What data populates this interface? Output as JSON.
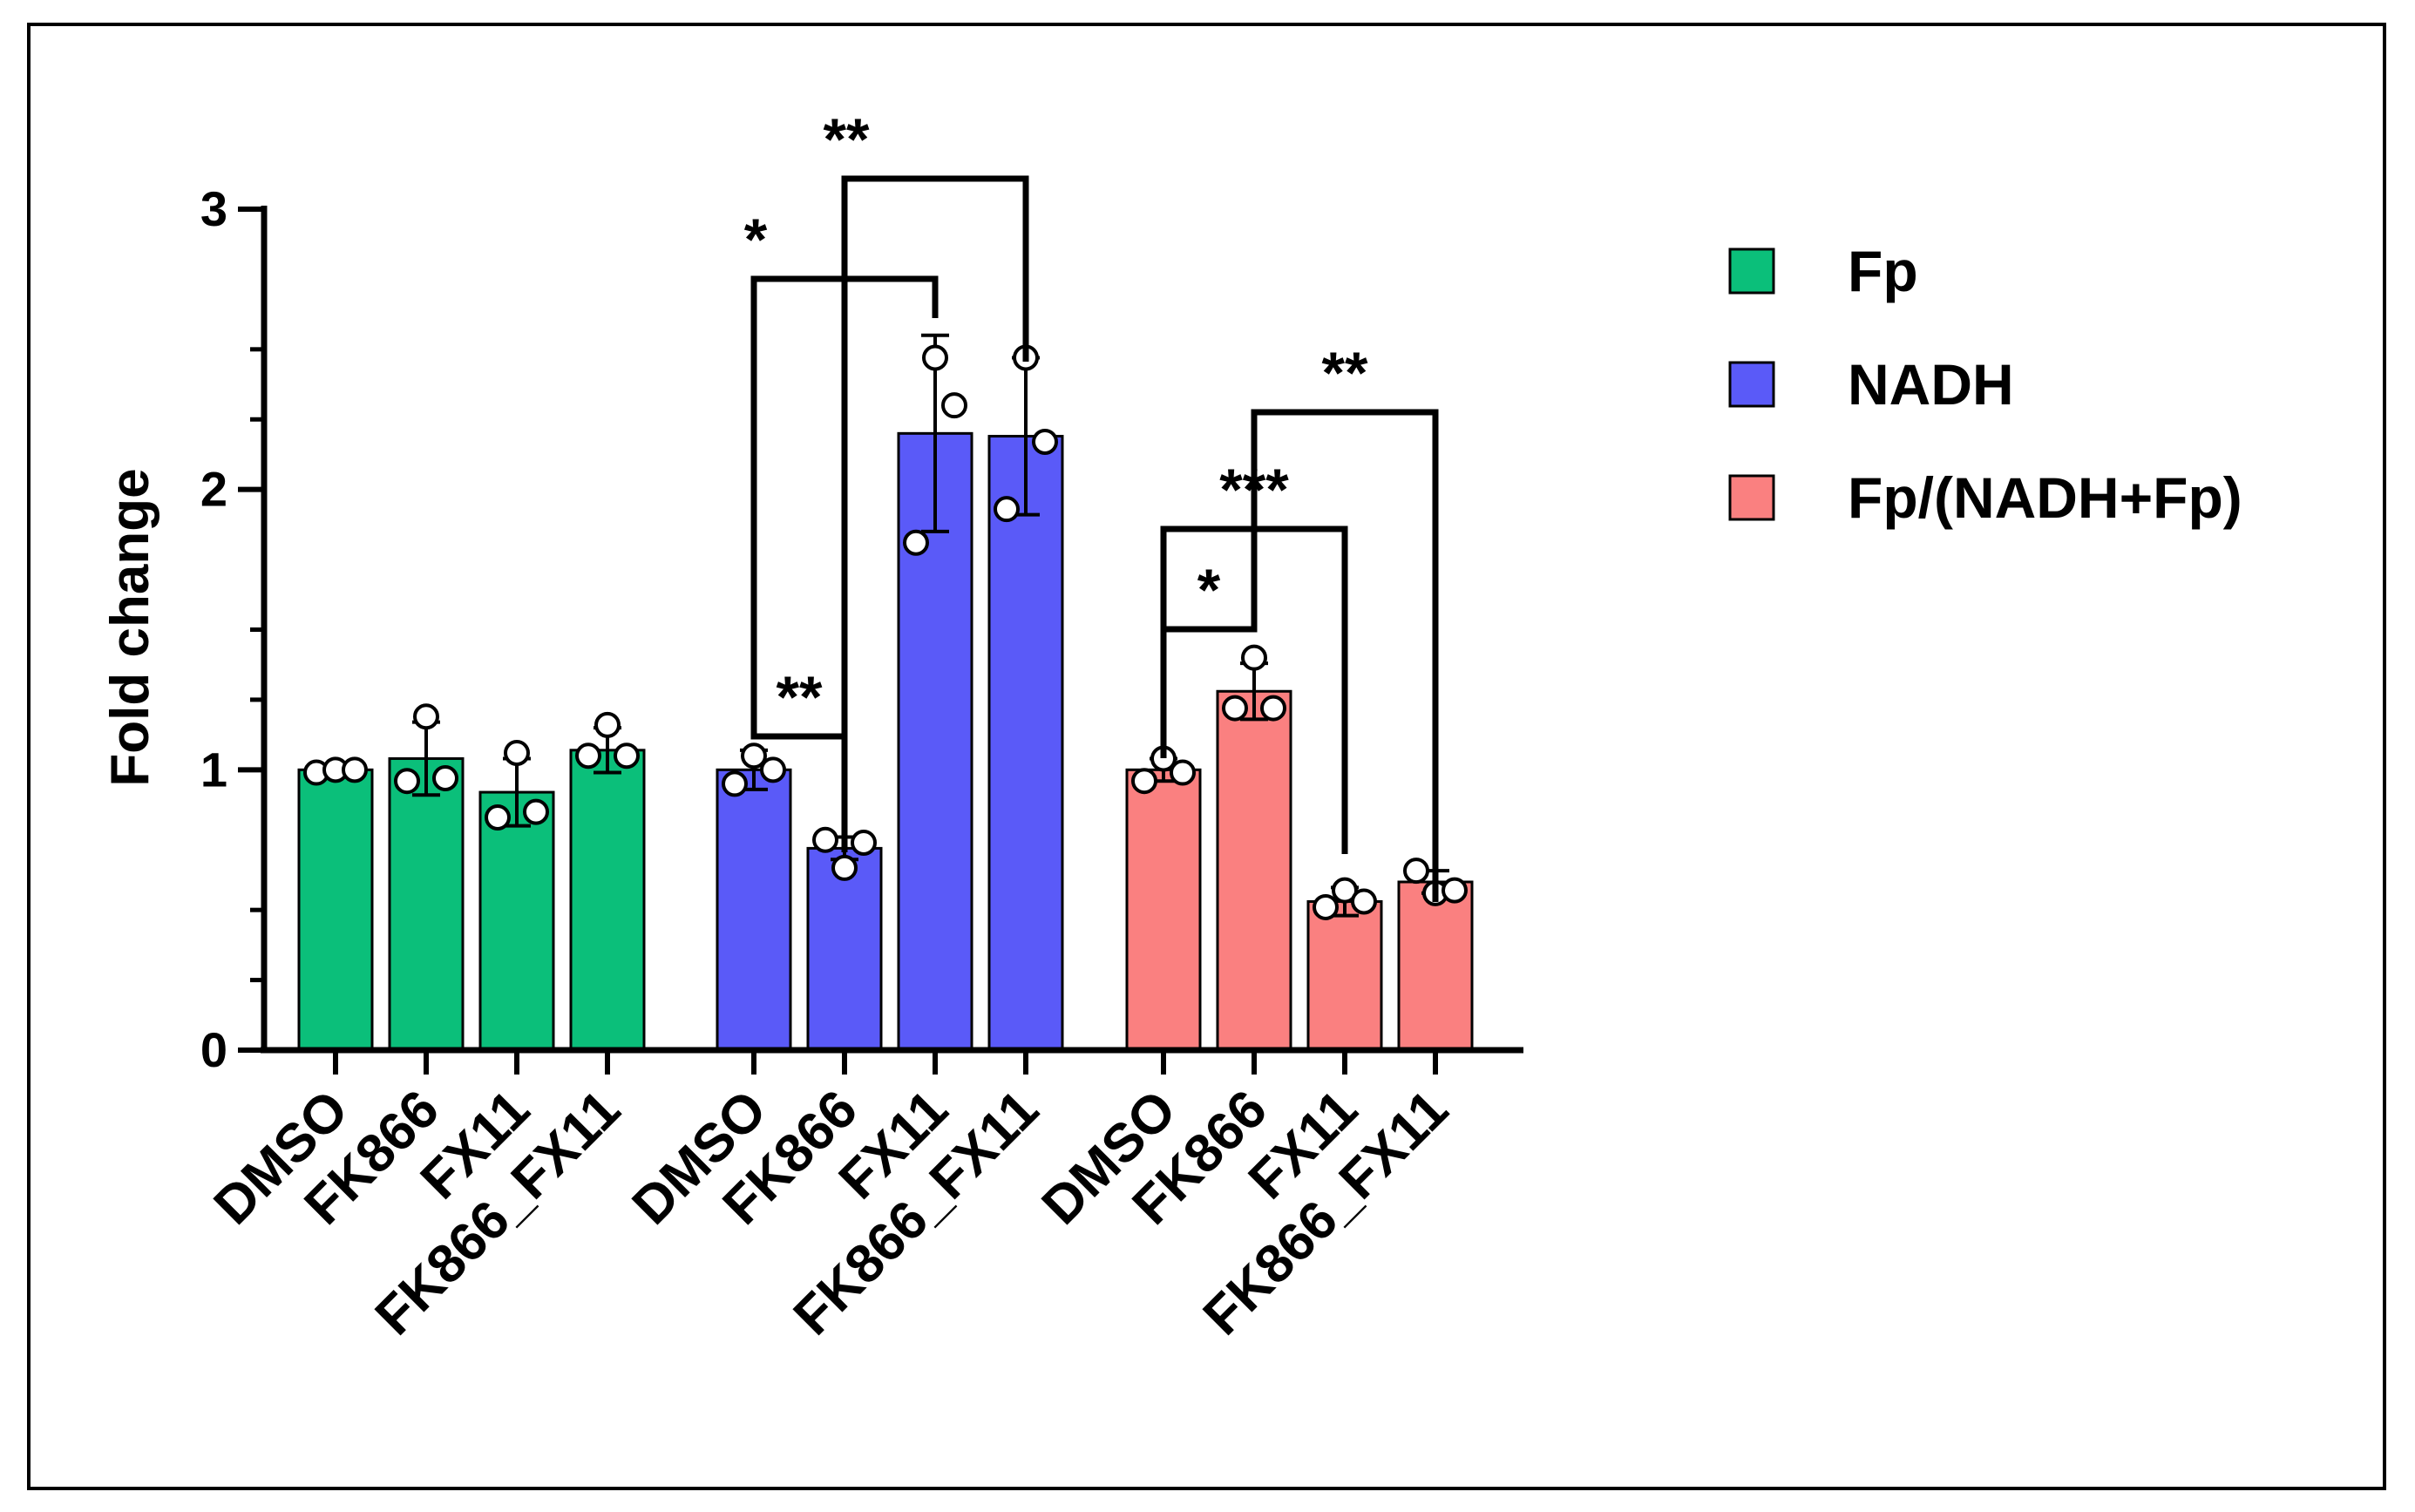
{
  "chart_data": {
    "type": "bar",
    "title": "",
    "xlabel": "",
    "ylabel": "Fold change",
    "ylim": [
      0,
      3
    ],
    "yticks": [
      "0",
      "1",
      "2",
      "3"
    ],
    "grid": false,
    "legend_position": "right",
    "series": [
      {
        "name": "Fp",
        "color": "#0BBF7A",
        "categories": [
          "DMSO",
          "FK866",
          "FX11",
          "FK866_FX11"
        ],
        "values": [
          1.0,
          1.04,
          0.92,
          1.07
        ],
        "errors": [
          0.01,
          0.13,
          0.12,
          0.08
        ],
        "points": [
          [
            0.99,
            1.0,
            1.0
          ],
          [
            0.96,
            1.19,
            0.97
          ],
          [
            0.83,
            1.06,
            0.85
          ],
          [
            1.05,
            1.16,
            1.05
          ]
        ]
      },
      {
        "name": "NADH",
        "color": "#5A5AF8",
        "categories": [
          "DMSO",
          "FK866",
          "FX11",
          "FK866_FX11"
        ],
        "values": [
          1.0,
          0.72,
          2.2,
          2.19
        ],
        "errors": [
          0.07,
          0.04,
          0.35,
          0.28
        ],
        "points": [
          [
            0.95,
            1.05,
            1.0
          ],
          [
            0.75,
            0.65,
            0.74
          ],
          [
            1.81,
            2.47,
            2.3
          ],
          [
            1.93,
            2.47,
            2.17
          ]
        ]
      },
      {
        "name": "Fp/(NADH+Fp)",
        "color": "#FA8080",
        "categories": [
          "DMSO",
          "FK866",
          "FX11",
          "FK866_FX11"
        ],
        "values": [
          1.0,
          1.28,
          0.53,
          0.6
        ],
        "errors": [
          0.04,
          0.1,
          0.05,
          0.04
        ],
        "points": [
          [
            0.96,
            1.04,
            0.99
          ],
          [
            1.22,
            1.4,
            1.22
          ],
          [
            0.51,
            0.57,
            0.53
          ],
          [
            0.64,
            0.56,
            0.57
          ]
        ]
      }
    ],
    "significance": [
      {
        "group": 1,
        "from": 0,
        "to": 1,
        "label": "**"
      },
      {
        "group": 1,
        "from": 0,
        "to": 2,
        "label": "*"
      },
      {
        "group": 1,
        "from": 1,
        "to": 3,
        "label": "**"
      },
      {
        "group": 2,
        "from": 0,
        "to": 1,
        "label": "*"
      },
      {
        "group": 2,
        "from": 0,
        "to": 2,
        "label": "***"
      },
      {
        "group": 2,
        "from": 1,
        "to": 3,
        "label": "**"
      }
    ]
  }
}
